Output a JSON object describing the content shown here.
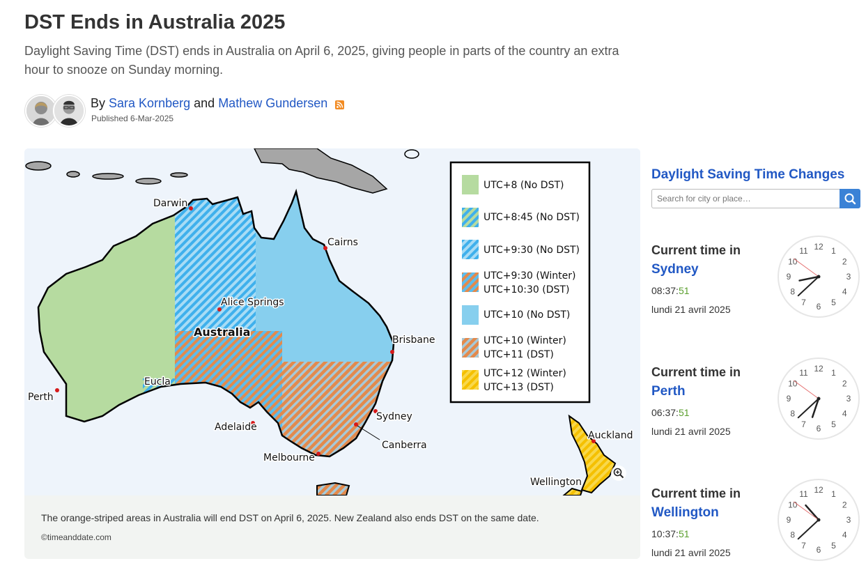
{
  "article": {
    "title": "DST Ends in Australia 2025",
    "subtitle": "Daylight Saving Time (DST) ends in Australia on April 6, 2025, giving people in parts of the country an extra hour to snooze on Sunday morning.",
    "by": "By",
    "author1": "Sara Kornberg",
    "and": "and",
    "author2": "Mathew Gundersen",
    "published": "Published 6-Mar-2025"
  },
  "map": {
    "legend": [
      {
        "label": "UTC+8 (No DST)",
        "color": "#b6dba0",
        "pattern": "solid-green"
      },
      {
        "label": "UTC+8:45 (No DST)",
        "color": "#4fb8ee",
        "pattern": "stripe-green-blue"
      },
      {
        "label": "UTC+9:30 (No DST)",
        "color": "#4fb8ee",
        "pattern": "stripe-blue"
      },
      {
        "label": "UTC+9:30 (Winter)",
        "label2": "UTC+10:30 (DST)",
        "color": "#e88a4a",
        "pattern": "stripe-orange-blue"
      },
      {
        "label": "UTC+10 (No DST)",
        "color": "#87cfee",
        "pattern": "solid-blue"
      },
      {
        "label": "UTC+10 (Winter)",
        "label2": "UTC+11 (DST)",
        "color": "#e88a4a",
        "pattern": "stripe-orange"
      },
      {
        "label": "UTC+12 (Winter)",
        "label2": "UTC+13 (DST)",
        "color": "#f5e13a",
        "pattern": "stripe-yellow"
      }
    ],
    "places": {
      "darwin": "Darwin",
      "cairns": "Cairns",
      "alice": "Alice Springs",
      "australia": "Australia",
      "brisbane": "Brisbane",
      "eucla": "Eucla",
      "perth": "Perth",
      "sydney": "Sydney",
      "adelaide": "Adelaide",
      "canberra": "Canberra",
      "melbourne": "Melbourne",
      "auckland": "Auckland",
      "wellington": "Wellington"
    },
    "caption": "The orange-striped areas in Australia will end DST on April 6, 2025. New Zealand also ends DST on the same date.",
    "credit": "©timeanddate.com",
    "zoom_icon": "zoom-in-icon"
  },
  "sidebar": {
    "title": "Daylight Saving Time Changes",
    "search_placeholder": "Search for city or place…",
    "search_icon": "search-icon",
    "cities": [
      {
        "label": "Current time in",
        "name": "Sydney",
        "time_hm": "08:37:",
        "time_s": "51",
        "date": "lundi 21 avril 2025",
        "hour": 8,
        "minute": 37,
        "second": 51
      },
      {
        "label": "Current time in",
        "name": "Perth",
        "time_hm": "06:37:",
        "time_s": "51",
        "date": "lundi 21 avril 2025",
        "hour": 6,
        "minute": 37,
        "second": 51
      },
      {
        "label": "Current time in",
        "name": "Wellington",
        "time_hm": "10:37:",
        "time_s": "51",
        "date": "lundi 21 avril 2025",
        "hour": 10,
        "minute": 37,
        "second": 51
      }
    ]
  }
}
